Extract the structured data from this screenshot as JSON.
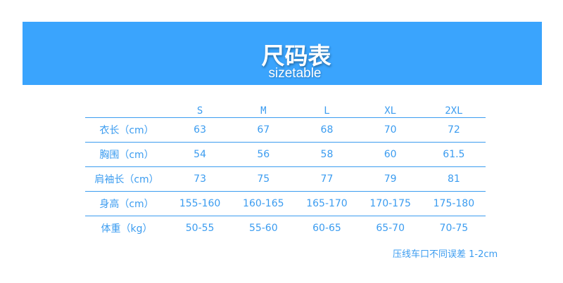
{
  "banner": {
    "title": "尺码表",
    "subtitle": "sizetable",
    "color": "#3aa4fd"
  },
  "table": {
    "headers": [
      "",
      "S",
      "M",
      "L",
      "XL",
      "2XL"
    ],
    "rows": [
      {
        "label": "衣长（cm）",
        "values": [
          "63",
          "67",
          "68",
          "70",
          "72"
        ]
      },
      {
        "label": "胸围（cm）",
        "values": [
          "54",
          "56",
          "58",
          "60",
          "61.5"
        ]
      },
      {
        "label": "肩袖长（cm）",
        "values": [
          "73",
          "75",
          "77",
          "79",
          "81"
        ]
      },
      {
        "label": "身高（cm）",
        "values": [
          "155-160",
          "160-165",
          "165-170",
          "170-175",
          "175-180"
        ]
      },
      {
        "label": "体重（kg）",
        "values": [
          "50-55",
          "55-60",
          "60-65",
          "65-70",
          "70-75"
        ]
      }
    ]
  },
  "note": "压线车口不同误差 1-2cm"
}
